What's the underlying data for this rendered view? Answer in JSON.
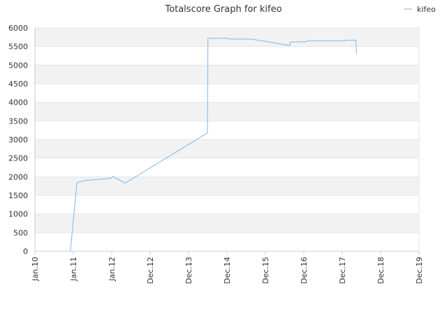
{
  "chart_data": {
    "type": "line",
    "title": "Totalscore Graph for kifeo",
    "xlabel": "",
    "ylabel": "",
    "ylim": [
      0,
      6000
    ],
    "yticks": [
      0,
      500,
      1000,
      1500,
      2000,
      2500,
      3000,
      3500,
      4000,
      4500,
      5000,
      5500,
      6000
    ],
    "xticks": [
      "Jan.10",
      "Jan.11",
      "Jan.12",
      "Dec.12",
      "Dec.13",
      "Dec.14",
      "Dec.15",
      "Dec.16",
      "Dec.17",
      "Dec.18",
      "Dec.19"
    ],
    "xlim": [
      "2010-01-01",
      "2019-12-01"
    ],
    "grid": "horizontal alternating bands",
    "legend_position": "top-right",
    "line_color": "#7cb5ec",
    "series": [
      {
        "name": "kifeo",
        "points": [
          [
            "2010-12-01",
            0
          ],
          [
            "2011-02-01",
            1840
          ],
          [
            "2011-04-15",
            1900
          ],
          [
            "2011-12-20",
            1960
          ],
          [
            "2012-01-05",
            2010
          ],
          [
            "2012-01-25",
            1980
          ],
          [
            "2012-05-01",
            1830
          ],
          [
            "2014-06-15",
            3180
          ],
          [
            "2014-06-20",
            5720
          ],
          [
            "2015-01-01",
            5720
          ],
          [
            "2015-01-10",
            5700
          ],
          [
            "2015-08-01",
            5700
          ],
          [
            "2016-08-01",
            5530
          ],
          [
            "2016-08-05",
            5620
          ],
          [
            "2017-01-01",
            5630
          ],
          [
            "2017-01-10",
            5650
          ],
          [
            "2018-01-01",
            5650
          ],
          [
            "2018-01-10",
            5670
          ],
          [
            "2018-04-15",
            5670
          ],
          [
            "2018-04-20",
            5310
          ]
        ]
      }
    ]
  }
}
